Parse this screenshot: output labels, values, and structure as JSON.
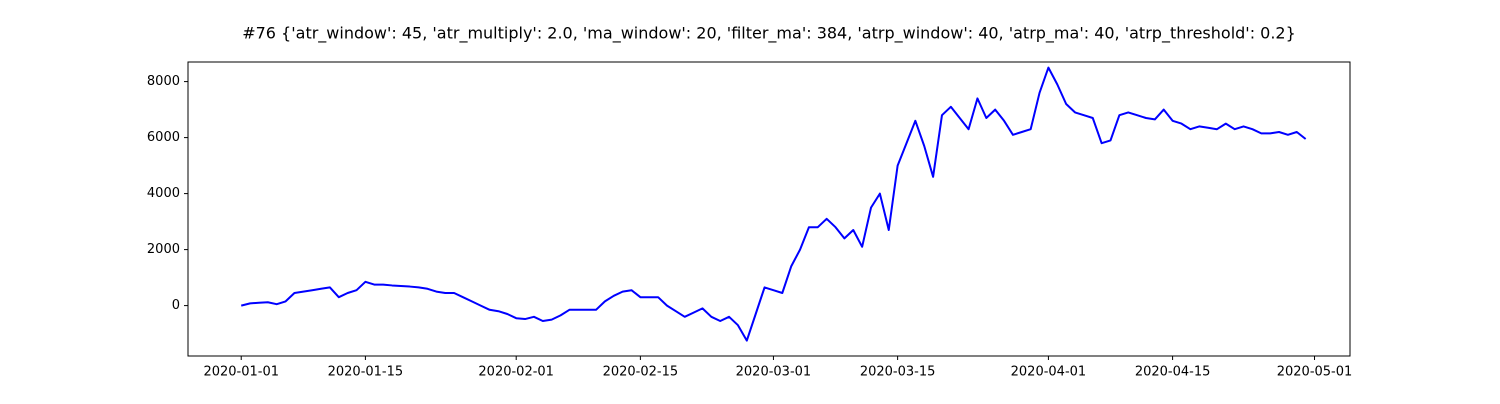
{
  "chart_data": {
    "type": "line",
    "title": "#76 {'atr_window': 45, 'atr_multiply': 2.0, 'ma_window': 20, 'filter_ma': 384, 'atrp_window': 40, 'atrp_ma': 40, 'atrp_threshold': 0.2}",
    "x": [
      "2020-01-01",
      "2020-01-02",
      "2020-01-03",
      "2020-01-04",
      "2020-01-05",
      "2020-01-06",
      "2020-01-07",
      "2020-01-08",
      "2020-01-09",
      "2020-01-10",
      "2020-01-11",
      "2020-01-12",
      "2020-01-13",
      "2020-01-14",
      "2020-01-15",
      "2020-01-16",
      "2020-01-17",
      "2020-01-18",
      "2020-01-19",
      "2020-01-20",
      "2020-01-21",
      "2020-01-22",
      "2020-01-23",
      "2020-01-24",
      "2020-01-25",
      "2020-01-26",
      "2020-01-27",
      "2020-01-28",
      "2020-01-29",
      "2020-01-30",
      "2020-01-31",
      "2020-02-01",
      "2020-02-02",
      "2020-02-03",
      "2020-02-04",
      "2020-02-05",
      "2020-02-06",
      "2020-02-07",
      "2020-02-08",
      "2020-02-09",
      "2020-02-10",
      "2020-02-11",
      "2020-02-12",
      "2020-02-13",
      "2020-02-14",
      "2020-02-15",
      "2020-02-16",
      "2020-02-17",
      "2020-02-18",
      "2020-02-19",
      "2020-02-20",
      "2020-02-21",
      "2020-02-22",
      "2020-02-23",
      "2020-02-24",
      "2020-02-25",
      "2020-02-26",
      "2020-02-27",
      "2020-02-28",
      "2020-02-29",
      "2020-03-01",
      "2020-03-02",
      "2020-03-03",
      "2020-03-04",
      "2020-03-05",
      "2020-03-06",
      "2020-03-07",
      "2020-03-08",
      "2020-03-09",
      "2020-03-10",
      "2020-03-11",
      "2020-03-12",
      "2020-03-13",
      "2020-03-14",
      "2020-03-15",
      "2020-03-16",
      "2020-03-17",
      "2020-03-18",
      "2020-03-19",
      "2020-03-20",
      "2020-03-21",
      "2020-03-22",
      "2020-03-23",
      "2020-03-24",
      "2020-03-25",
      "2020-03-26",
      "2020-03-27",
      "2020-03-28",
      "2020-03-29",
      "2020-03-30",
      "2020-03-31",
      "2020-04-01",
      "2020-04-02",
      "2020-04-03",
      "2020-04-04",
      "2020-04-05",
      "2020-04-06",
      "2020-04-07",
      "2020-04-08",
      "2020-04-09",
      "2020-04-10",
      "2020-04-11",
      "2020-04-12",
      "2020-04-13",
      "2020-04-14",
      "2020-04-15",
      "2020-04-16",
      "2020-04-17",
      "2020-04-18",
      "2020-04-19",
      "2020-04-20",
      "2020-04-21",
      "2020-04-22",
      "2020-04-23",
      "2020-04-24",
      "2020-04-25",
      "2020-04-26",
      "2020-04-27",
      "2020-04-28",
      "2020-04-29",
      "2020-04-30"
    ],
    "series": [
      {
        "color": "#0000ff",
        "values": [
          0,
          80,
          100,
          120,
          50,
          150,
          450,
          500,
          550,
          600,
          650,
          300,
          450,
          550,
          850,
          750,
          750,
          720,
          700,
          680,
          650,
          600,
          500,
          450,
          450,
          300,
          150,
          0,
          -150,
          -200,
          -300,
          -450,
          -480,
          -400,
          -550,
          -500,
          -350,
          -150,
          -150,
          -150,
          -150,
          150,
          350,
          500,
          550,
          300,
          300,
          300,
          0,
          -200,
          -400,
          -250,
          -100,
          -400,
          -550,
          -400,
          -700,
          -1250,
          -300,
          650,
          550,
          450,
          1400,
          2000,
          2800,
          2800,
          3100,
          2800,
          2400,
          2700,
          2100,
          3500,
          4000,
          2700,
          5000,
          5800,
          6600,
          5700,
          4600,
          6800,
          7100,
          6700,
          6300,
          7400,
          6700,
          7000,
          6600,
          6100,
          6200,
          6300,
          7600,
          8500,
          7900,
          7200,
          6900,
          6800,
          6700,
          5800,
          5900,
          6800,
          6900,
          6800,
          6700,
          6650,
          7000,
          6600,
          6500,
          6300,
          6400,
          6350,
          6300,
          6500,
          6300,
          6400,
          6300,
          6150,
          6150,
          6200,
          6100,
          6200,
          5950
        ]
      }
    ],
    "xlim": [
      "2019-12-26",
      "2020-05-05"
    ],
    "xticks": [
      "2020-01-01",
      "2020-01-15",
      "2020-02-01",
      "2020-02-15",
      "2020-03-01",
      "2020-03-15",
      "2020-04-01",
      "2020-04-15",
      "2020-05-01"
    ],
    "ylim": [
      -1800,
      8700
    ],
    "yticks": [
      0,
      2000,
      4000,
      6000,
      8000
    ]
  }
}
